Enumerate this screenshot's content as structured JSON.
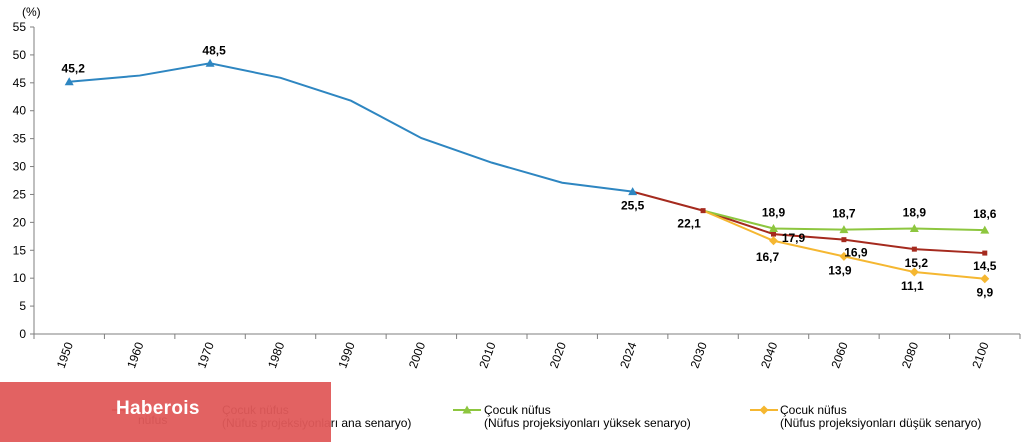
{
  "chart_data": {
    "type": "line",
    "unit_label": "(%)",
    "x": [
      "1950",
      "1960",
      "1970",
      "1980",
      "1990",
      "2000",
      "2010",
      "2020",
      "2024",
      "2030",
      "2040",
      "2060",
      "2080",
      "2100"
    ],
    "ylim": [
      0,
      55
    ],
    "yticks": [
      0,
      5,
      10,
      15,
      20,
      25,
      30,
      35,
      40,
      45,
      50,
      55
    ],
    "grid": false,
    "legend_position": "bottom",
    "series": [
      {
        "name": "",
        "color": "#2e86c1",
        "marker": "triangle",
        "points": [
          {
            "x": "1950",
            "y": 45.2,
            "label": "45,2",
            "marker": true
          },
          {
            "x": "1960",
            "y": 46.3
          },
          {
            "x": "1970",
            "y": 48.5,
            "label": "48,5",
            "marker": true
          },
          {
            "x": "1980",
            "y": 45.9
          },
          {
            "x": "1990",
            "y": 41.8
          },
          {
            "x": "2000",
            "y": 35.1
          },
          {
            "x": "2010",
            "y": 30.7
          },
          {
            "x": "2020",
            "y": 27.1
          },
          {
            "x": "2024",
            "y": 25.5,
            "label": "25,5",
            "marker": true
          }
        ]
      },
      {
        "name": "Çocuk nüfus\n(Nüfus projeksiyonları ana senaryo)",
        "color": "#a52a1e",
        "marker": "square",
        "points": [
          {
            "x": "2024",
            "y": 25.5
          },
          {
            "x": "2030",
            "y": 22.1,
            "label": "22,1",
            "marker": true
          },
          {
            "x": "2040",
            "y": 17.9,
            "label": "17,9",
            "marker": true
          },
          {
            "x": "2060",
            "y": 16.9,
            "label": "16,9",
            "marker": true
          },
          {
            "x": "2080",
            "y": 15.2,
            "label": "15,2",
            "marker": true
          },
          {
            "x": "2100",
            "y": 14.5,
            "label": "14,5",
            "marker": true
          }
        ]
      },
      {
        "name": "Çocuk nüfus\n(Nüfus projeksiyonları yüksek senaryo)",
        "color": "#8dc63f",
        "marker": "triangle",
        "points": [
          {
            "x": "2030",
            "y": 22.1
          },
          {
            "x": "2040",
            "y": 18.9,
            "label": "18,9",
            "marker": true
          },
          {
            "x": "2060",
            "y": 18.7,
            "label": "18,7",
            "marker": true
          },
          {
            "x": "2080",
            "y": 18.9,
            "label": "18,9",
            "marker": true
          },
          {
            "x": "2100",
            "y": 18.6,
            "label": "18,6",
            "marker": true
          }
        ]
      },
      {
        "name": "Çocuk nüfus\n(Nüfus projeksiyonları düşük senaryo)",
        "color": "#f5b731",
        "marker": "diamond",
        "points": [
          {
            "x": "2030",
            "y": 22.1
          },
          {
            "x": "2040",
            "y": 16.7,
            "label": "16,7",
            "marker": true
          },
          {
            "x": "2060",
            "y": 13.9,
            "label": "13,9",
            "marker": true
          },
          {
            "x": "2080",
            "y": 11.1,
            "label": "11,1",
            "marker": true
          },
          {
            "x": "2100",
            "y": 9.9,
            "label": "9,9",
            "marker": true
          }
        ]
      }
    ],
    "legend_partial_text": "nüfus"
  },
  "watermark": "Haberois"
}
